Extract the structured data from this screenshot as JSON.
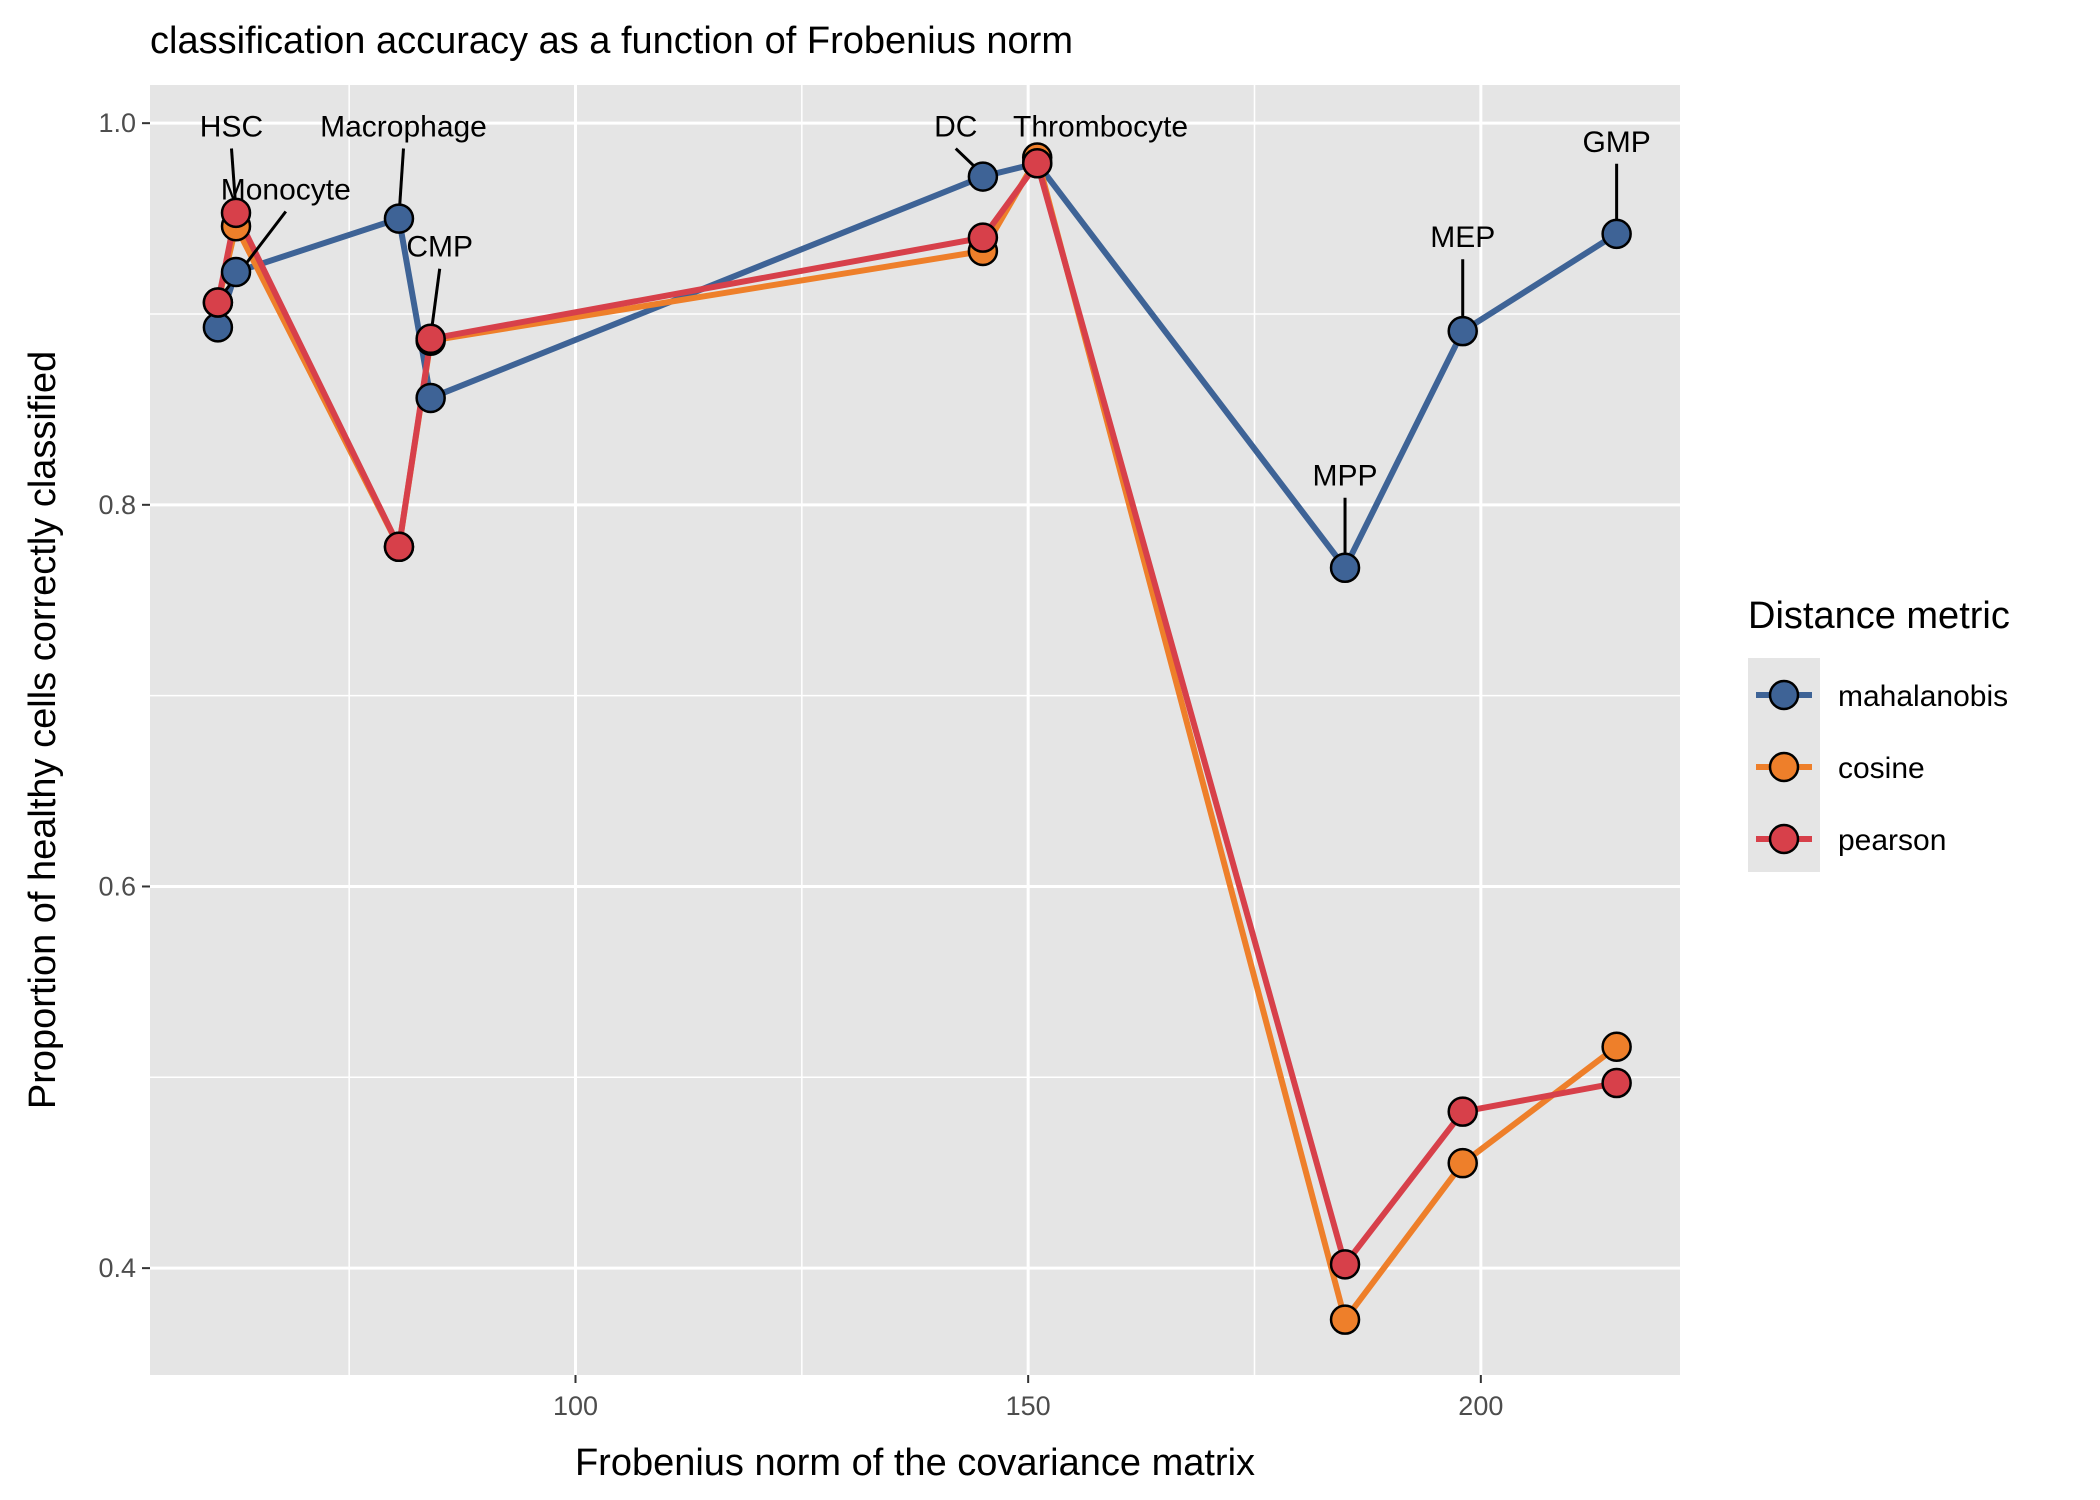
{
  "chart_data": {
    "type": "line",
    "title": "classification accuracy as a function of Frobenius norm",
    "xlabel": "Frobenius norm of the covariance matrix",
    "ylabel": "Proportion of healthy cells correctly classified",
    "xlim": [
      53,
      222
    ],
    "ylim": [
      0.344,
      1.02
    ],
    "x_ticks": [
      100,
      150,
      200
    ],
    "x_tick_labels": [
      "100",
      "150",
      "200"
    ],
    "y_ticks": [
      0.4,
      0.6,
      0.8,
      1.0
    ],
    "y_tick_labels": [
      "0.4",
      "0.6",
      "0.8",
      "1.0"
    ],
    "grid": true,
    "legend": {
      "title": "Distance metric",
      "position": "right"
    },
    "colors": {
      "panel": "#e5e5e5",
      "grid": "#ffffff",
      "mahalanobis": "#3e6396",
      "cosine": "#ee7f2a",
      "pearson": "#d7404a"
    },
    "series": [
      {
        "name": "mahalanobis",
        "color": "#3e6396",
        "x": [
          60.5,
          62.5,
          80.5,
          84,
          145,
          151,
          185,
          198,
          215
        ],
        "y": [
          0.893,
          0.922,
          0.95,
          0.856,
          0.972,
          0.979,
          0.767,
          0.891,
          0.942
        ]
      },
      {
        "name": "cosine",
        "color": "#ee7f2a",
        "x": [
          60.5,
          62.5,
          80.5,
          84,
          145,
          151,
          185,
          198,
          215
        ],
        "y": [
          0.906,
          0.946,
          0.778,
          0.886,
          0.933,
          0.982,
          0.373,
          0.455,
          0.516
        ]
      },
      {
        "name": "pearson",
        "color": "#d7404a",
        "x": [
          60.5,
          62.5,
          80.5,
          84,
          145,
          151,
          185,
          198,
          215
        ],
        "y": [
          0.906,
          0.953,
          0.778,
          0.887,
          0.94,
          0.979,
          0.402,
          0.482,
          0.497
        ]
      }
    ],
    "annotations": [
      {
        "label": "HSC",
        "x": 62.5,
        "y": 0.953
      },
      {
        "label": "Monocyte",
        "x": 60.5,
        "y": 0.906
      },
      {
        "label": "Macrophage",
        "x": 80.5,
        "y": 0.95
      },
      {
        "label": "CMP",
        "x": 84,
        "y": 0.887
      },
      {
        "label": "DC",
        "x": 145,
        "y": 0.972
      },
      {
        "label": "Thrombocyte",
        "x": 151,
        "y": 0.982
      },
      {
        "label": "MPP",
        "x": 185,
        "y": 0.767
      },
      {
        "label": "MEP",
        "x": 198,
        "y": 0.891
      },
      {
        "label": "GMP",
        "x": 215,
        "y": 0.942
      }
    ]
  }
}
